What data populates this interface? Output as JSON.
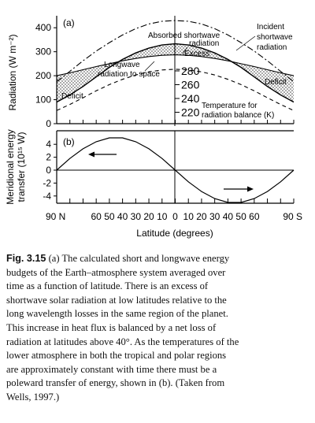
{
  "chart_data": [
    {
      "type": "line",
      "panel_label": "(a)",
      "ylabel": "Radiation (W m⁻²)",
      "ylim": [
        0,
        450
      ],
      "yticks": [
        0,
        100,
        200,
        300,
        400
      ],
      "x": [
        -90,
        -80,
        -70,
        -60,
        -50,
        -40,
        -30,
        -20,
        -10,
        0,
        10,
        20,
        30,
        40,
        50,
        60,
        70,
        80,
        90
      ],
      "series": [
        {
          "name": "Incident shortwave radiation",
          "style": "dash-dot",
          "values": [
            175,
            218,
            262,
            303,
            338,
            370,
            396,
            416,
            427,
            430,
            427,
            416,
            396,
            370,
            338,
            303,
            262,
            218,
            175
          ]
        },
        {
          "name": "Absorbed shortwave radiation",
          "style": "solid",
          "values": [
            90,
            120,
            155,
            195,
            235,
            268,
            295,
            315,
            328,
            333,
            328,
            315,
            295,
            268,
            235,
            195,
            155,
            120,
            90
          ]
        },
        {
          "name": "Longwave radiation to space",
          "style": "solid",
          "values": [
            200,
            212,
            225,
            238,
            250,
            262,
            272,
            280,
            285,
            287,
            285,
            280,
            272,
            262,
            250,
            238,
            225,
            212,
            200
          ]
        },
        {
          "name": "Temperature for radiation balance (K)",
          "style": "dashed",
          "values": [
            55,
            80,
            108,
            137,
            163,
            185,
            203,
            216,
            224,
            227,
            224,
            216,
            203,
            185,
            163,
            137,
            108,
            80,
            55
          ]
        }
      ],
      "temperature_axis": {
        "ticks": [
          "280",
          "260",
          "240",
          "220"
        ],
        "label_line1": "Temperature for",
        "label_line2": "radiation balance (K)"
      },
      "annotations": {
        "incident_1": "Incident",
        "incident_2": "shortwave",
        "incident_3": "radiation",
        "absorbed_1": "Absorbed shortwave",
        "absorbed_2": "radiation",
        "excess": "Excess",
        "longwave_1": "Longwave",
        "longwave_2": "radiation to space",
        "deficit_left": "Deficit",
        "deficit_right": "Deficit"
      }
    },
    {
      "type": "line",
      "panel_label": "(b)",
      "ylabel_line1": "Meridional energy",
      "ylabel_line2": "transfer (10¹⁵ W)",
      "ylim": [
        -6,
        6
      ],
      "yticks": [
        4,
        2,
        0,
        -2,
        -4
      ],
      "xlabel": "Latitude (degrees)",
      "xtick_labels": [
        "90 N",
        "60",
        "50",
        "40",
        "30",
        "20",
        "10",
        "0",
        "10",
        "20",
        "30",
        "40",
        "50",
        "60",
        "90 S"
      ],
      "x": [
        -90,
        -80,
        -70,
        -60,
        -50,
        -40,
        -30,
        -20,
        -10,
        0,
        10,
        20,
        30,
        40,
        50,
        60,
        70,
        80,
        90
      ],
      "series": [
        {
          "name": "",
          "values": [
            0,
            1.8,
            3.3,
            4.4,
            5.0,
            5.0,
            4.4,
            3.3,
            1.8,
            0,
            -1.8,
            -3.3,
            -4.4,
            -5.0,
            -5.0,
            -4.4,
            -3.3,
            -1.8,
            0
          ]
        }
      ]
    }
  ],
  "caption": {
    "label": "Fig. 3.15",
    "lines": [
      "(a) The calculated short and longwave energy",
      "budgets of the Earth–atmosphere system averaged over",
      "time as a function of latitude. There is an excess of",
      "shortwave solar radiation at low latitudes relative to the",
      "long wavelength losses in the same region of the planet.",
      "This increase in heat flux is balanced by a net loss of",
      "radiation at latitudes above 40°. As the temperatures of the",
      "lower atmosphere in both the tropical and polar regions",
      "are approximately constant with time there must be a",
      "poleward transfer of energy, shown in (b). (Taken from",
      "Wells, 1997.)"
    ]
  }
}
